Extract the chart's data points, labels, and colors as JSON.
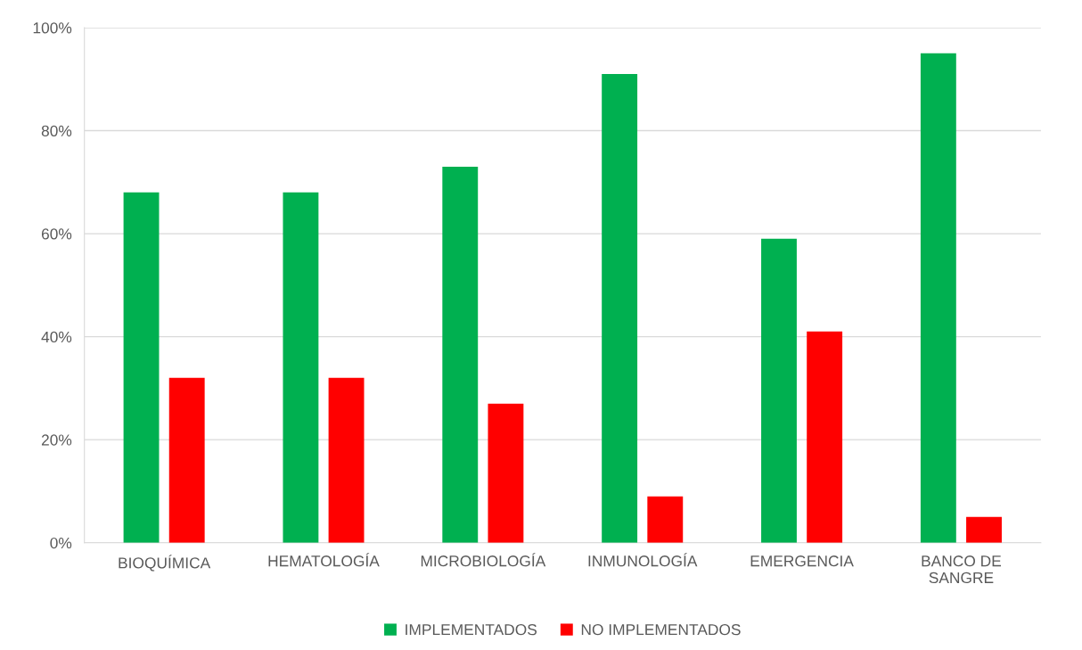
{
  "chart_data": {
    "type": "bar",
    "categories": [
      "BIOQUÍMICA",
      "HEMATOLOGÍA",
      "MICROBIOLOGÍA",
      "INMUNOLOGÍA",
      "EMERGENCIA",
      "BANCO DE\nSANGRE"
    ],
    "series": [
      {
        "name": "IMPLEMENTADOS",
        "color": "#00b050",
        "values": [
          68,
          68,
          73,
          91,
          59,
          95
        ]
      },
      {
        "name": "NO IMPLEMENTADOS",
        "color": "#ff0000",
        "values": [
          32,
          32,
          27,
          9,
          41,
          5
        ]
      }
    ],
    "ylim": [
      0,
      100
    ],
    "yticks": [
      {
        "value": 0,
        "label": "0%"
      },
      {
        "value": 20,
        "label": "20%"
      },
      {
        "value": 40,
        "label": "40%"
      },
      {
        "value": 60,
        "label": "60%"
      },
      {
        "value": 80,
        "label": "80%"
      },
      {
        "value": 100,
        "label": "100%"
      }
    ],
    "grid": "y",
    "legend": "bottom"
  }
}
